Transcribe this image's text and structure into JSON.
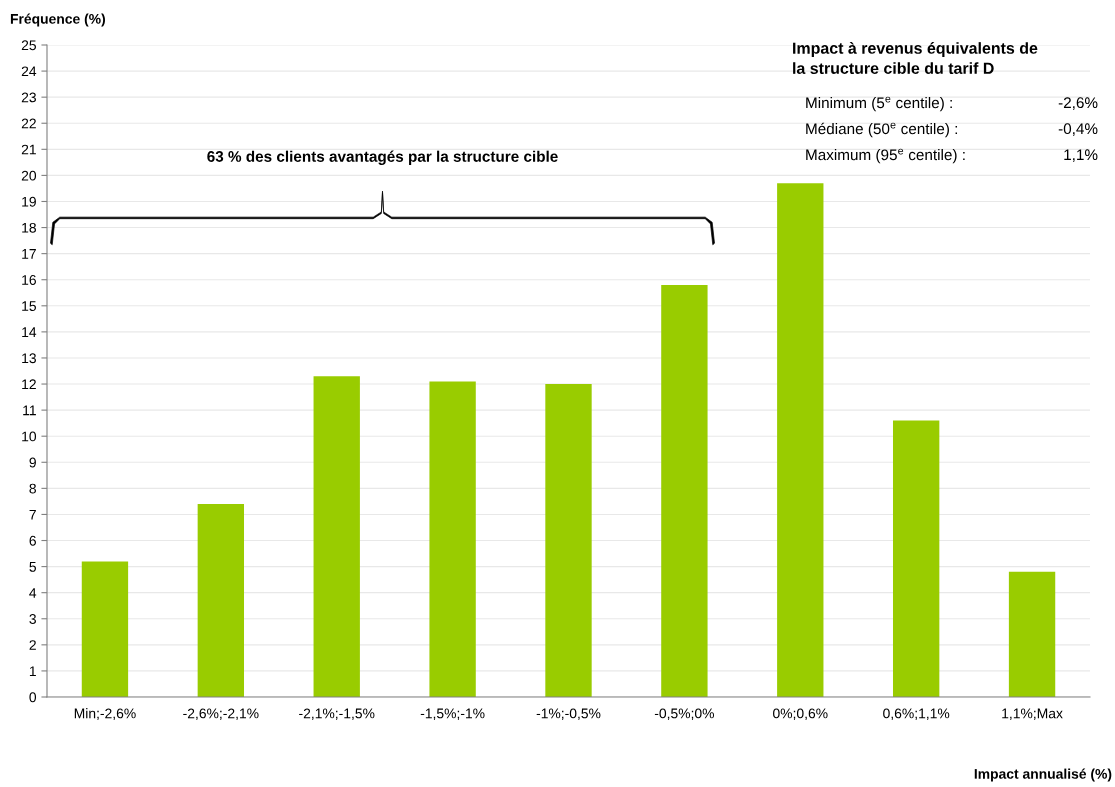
{
  "chart_data": {
    "type": "bar",
    "xlabel": "Impact annualisé (%)",
    "ylabel": "Fréquence (%)",
    "categories": [
      "Min;-2,6%",
      "-2,6%;-2,1%",
      "-2,1%;-1,5%",
      "-1,5%;-1%",
      "-1%;-0,5%",
      "-0,5%;0%",
      "0%;0,6%",
      "0,6%;1,1%",
      "1,1%;Max"
    ],
    "values": [
      5.2,
      7.4,
      12.3,
      12.1,
      12.0,
      15.8,
      19.7,
      10.6,
      4.8
    ],
    "color": "#99cc00",
    "ylim": [
      0,
      25
    ],
    "yticks": [
      0,
      1,
      2,
      3,
      4,
      5,
      6,
      7,
      8,
      9,
      10,
      11,
      12,
      13,
      14,
      15,
      16,
      17,
      18,
      19,
      20,
      21,
      22,
      23,
      24,
      25
    ],
    "grid": "y",
    "legend": false,
    "annotations": [
      "63 % des clients avantagés par la structure cible",
      "Impact à revenus équivalents de\nla structure cible du tarif D",
      "Minimum (5$^{e}$ centile) :",
      "-2,6%",
      "Médiane (50$^{e}$ centile) :",
      "-0,4%",
      "Maximum (95$^{e}$ centile) :",
      "1,1%"
    ]
  }
}
